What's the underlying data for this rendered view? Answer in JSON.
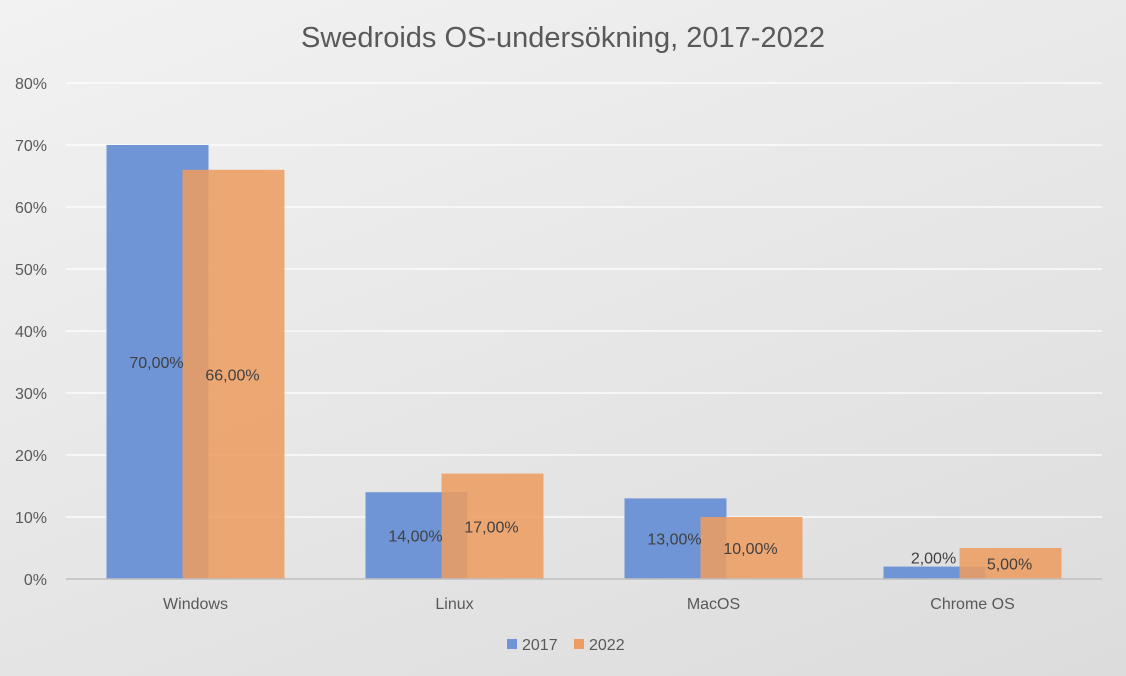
{
  "chart_data": {
    "type": "bar",
    "title": "Swedroids OS-undersökning,  2017-2022",
    "xlabel": "",
    "ylabel": "",
    "categories": [
      "Windows",
      "Linux",
      "MacOS",
      "Chrome  OS"
    ],
    "series": [
      {
        "name": "2017",
        "color": "#6f95d6",
        "values": [
          70,
          14,
          13,
          2
        ],
        "labels": [
          "70,00%",
          "14,00%",
          "13,00%",
          "2,00%"
        ]
      },
      {
        "name": "2022",
        "color": "#ed9d62",
        "values": [
          66,
          17,
          10,
          5
        ],
        "labels": [
          "66,00%",
          "17,00%",
          "10,00%",
          "5,00%"
        ]
      }
    ],
    "ylim": [
      0,
      80
    ],
    "yticks": [
      0,
      10,
      20,
      30,
      40,
      50,
      60,
      70,
      80
    ],
    "ytick_labels": [
      "0%",
      "10%",
      "20%",
      "30%",
      "40%",
      "50%",
      "60%",
      "70%",
      "80%"
    ],
    "grid": true,
    "legend_position": "bottom"
  }
}
